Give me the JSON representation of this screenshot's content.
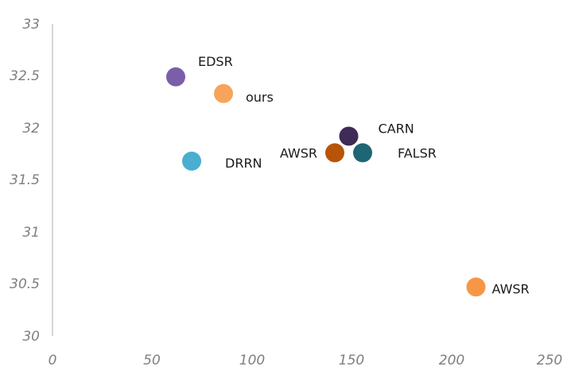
{
  "chart_data": {
    "type": "scatter",
    "title": "",
    "xlabel": "",
    "ylabel": "",
    "xlim": [
      0,
      250
    ],
    "ylim": [
      30,
      33
    ],
    "x_ticks": [
      "0",
      "50",
      "100",
      "150",
      "200",
      "250"
    ],
    "y_ticks": [
      "30",
      "30.5",
      "31",
      "31.5",
      "32",
      "32.5",
      "33"
    ],
    "grid": false,
    "points": [
      {
        "label": "EDSR",
        "x": 62,
        "y": 32.49,
        "color": "#7b5ea8"
      },
      {
        "label": "ours",
        "x": 86,
        "y": 32.33,
        "color": "#f7a35c"
      },
      {
        "label": "CARN",
        "x": 149,
        "y": 31.92,
        "color": "#3e2b57"
      },
      {
        "label": "AWSR",
        "x": 142,
        "y": 31.76,
        "color": "#b85408"
      },
      {
        "label": "FALSR",
        "x": 156,
        "y": 31.76,
        "color": "#1f6674"
      },
      {
        "label": "DRRN",
        "x": 70,
        "y": 31.68,
        "color": "#4aaed0"
      },
      {
        "label": "AWSR",
        "x": 213,
        "y": 30.47,
        "color": "#f79646"
      }
    ]
  }
}
